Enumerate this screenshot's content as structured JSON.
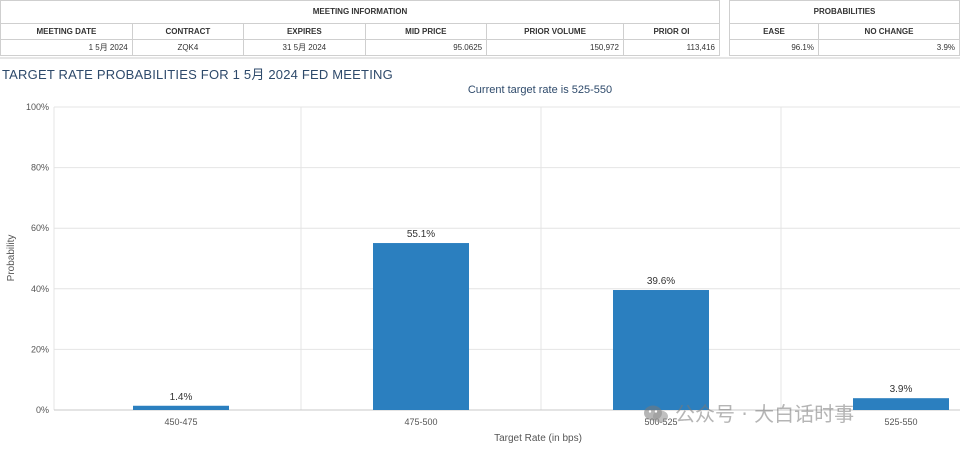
{
  "meeting_info": {
    "group_title": "MEETING INFORMATION",
    "headers": [
      "MEETING DATE",
      "CONTRACT",
      "EXPIRES",
      "MID PRICE",
      "PRIOR VOLUME",
      "PRIOR OI"
    ],
    "row": [
      "1 5月 2024",
      "ZQK4",
      "31 5月 2024",
      "95.0625",
      "150,972",
      "113,416"
    ]
  },
  "probabilities": {
    "group_title": "PROBABILITIES",
    "headers": [
      "EASE",
      "NO CHANGE"
    ],
    "row": [
      "96.1%",
      "3.9%"
    ]
  },
  "chart_data": {
    "type": "bar",
    "title": "TARGET RATE PROBABILITIES FOR 1 5月 2024 FED MEETING",
    "subtitle": "Current target rate is 525-550",
    "categories": [
      "450-475",
      "475-500",
      "500-525",
      "525-550"
    ],
    "values": [
      1.4,
      55.1,
      39.6,
      3.9
    ],
    "data_labels": [
      "1.4%",
      "55.1%",
      "39.6%",
      "3.9%"
    ],
    "xlabel": "Target Rate (in bps)",
    "ylabel": "Probability",
    "ylim": [
      0,
      100
    ],
    "yticks": [
      "0%",
      "20%",
      "40%",
      "60%",
      "80%",
      "100%"
    ],
    "grid": true,
    "bar_color": "#2b7fbf"
  },
  "watermark": {
    "text": "公众号 · 大白话时事",
    "icon": "wechat-icon"
  }
}
